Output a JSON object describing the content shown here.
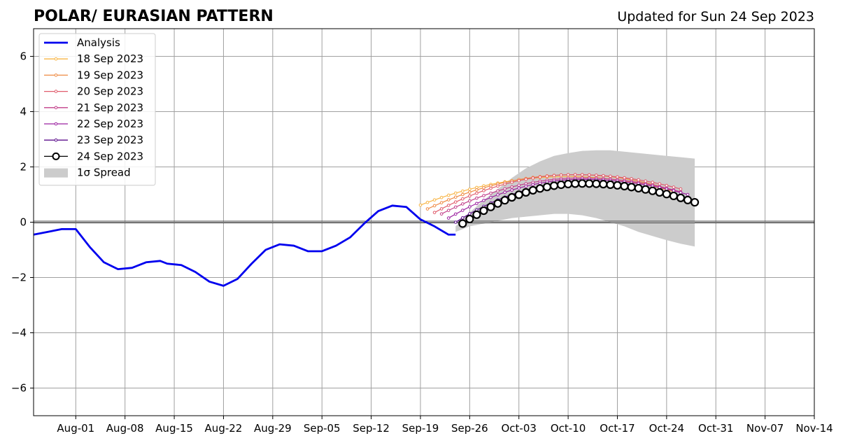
{
  "chart_data": {
    "type": "line",
    "title": "POLAR/ EURASIAN  PATTERN",
    "subtitle": "Updated for Sun 24 Sep 2023",
    "x_tick_labels": [
      "Aug-01",
      "Aug-08",
      "Aug-15",
      "Aug-22",
      "Aug-29",
      "Sep-05",
      "Sep-12",
      "Sep-19",
      "Sep-26",
      "Oct-03",
      "Oct-10",
      "Oct-17",
      "Oct-24",
      "Oct-31",
      "Nov-07",
      "Nov-14"
    ],
    "x_tick_values": [
      6,
      13,
      20,
      27,
      34,
      41,
      48,
      55,
      62,
      69,
      76,
      83,
      90,
      97,
      104,
      111
    ],
    "x_axis_origin": "Jul-26",
    "xlim": [
      0,
      111
    ],
    "ylim": [
      -7,
      7
    ],
    "y_ticks": [
      -6,
      -4,
      -2,
      0,
      2,
      4,
      6
    ],
    "y_tick_labels": [
      "−6",
      "−4",
      "−2",
      "0",
      "2",
      "4",
      "6"
    ],
    "grid": true,
    "zero_line": true,
    "legend_position": "upper-left",
    "analysis": {
      "name": "Analysis",
      "color": "#0000ee",
      "x": [
        0,
        2,
        4,
        6,
        8,
        10,
        12,
        14,
        16,
        18,
        19,
        21,
        23,
        25,
        27,
        29,
        31,
        33,
        35,
        37,
        39,
        41,
        43,
        45,
        47,
        49,
        51,
        53,
        55,
        57,
        59,
        60
      ],
      "y": [
        -0.45,
        -0.35,
        -0.25,
        -0.25,
        -0.9,
        -1.45,
        -1.7,
        -1.65,
        -1.45,
        -1.4,
        -1.5,
        -1.55,
        -1.8,
        -2.15,
        -2.3,
        -2.05,
        -1.5,
        -1.0,
        -0.8,
        -0.85,
        -1.05,
        -1.05,
        -0.85,
        -0.55,
        -0.05,
        0.4,
        0.6,
        0.55,
        0.1,
        -0.15,
        -0.45,
        -0.45
      ]
    },
    "forecasts": [
      {
        "name": "18 Sep 2023",
        "color": "#f8b545",
        "start": 55,
        "end": 91,
        "y0": 0.62,
        "ypeak": 1.65,
        "xpeak": 76,
        "yend": 1.1
      },
      {
        "name": "19 Sep 2023",
        "color": "#ef8a43",
        "start": 56,
        "end": 91,
        "y0": 0.48,
        "ypeak": 1.72,
        "xpeak": 77,
        "yend": 1.15
      },
      {
        "name": "20 Sep 2023",
        "color": "#e05c6c",
        "start": 57,
        "end": 92,
        "y0": 0.35,
        "ypeak": 1.72,
        "xpeak": 77,
        "yend": 1.2
      },
      {
        "name": "21 Sep 2023",
        "color": "#c23f8a",
        "start": 58,
        "end": 92,
        "y0": 0.3,
        "ypeak": 1.6,
        "xpeak": 78,
        "yend": 1.1
      },
      {
        "name": "22 Sep 2023",
        "color": "#9b21a0",
        "start": 59,
        "end": 93,
        "y0": 0.15,
        "ypeak": 1.55,
        "xpeak": 78,
        "yend": 1.0
      },
      {
        "name": "23 Sep 2023",
        "color": "#5c0e8c",
        "start": 60,
        "end": 94,
        "y0": 0.0,
        "ypeak": 1.45,
        "xpeak": 78,
        "yend": 0.8
      },
      {
        "name": "24 Sep 2023",
        "color": "#000000",
        "start": 61,
        "end": 94,
        "y0": -0.05,
        "ypeak": 1.4,
        "xpeak": 78,
        "yend": 0.72
      }
    ],
    "spread": {
      "name": "1σ Spread",
      "color": "#cccccc",
      "x": [
        60,
        62,
        64,
        66,
        68,
        70,
        72,
        74,
        76,
        78,
        80,
        82,
        84,
        86,
        88,
        90,
        92,
        94
      ],
      "upper": [
        -0.15,
        0.35,
        0.8,
        1.2,
        1.6,
        1.95,
        2.2,
        2.4,
        2.5,
        2.58,
        2.6,
        2.6,
        2.55,
        2.5,
        2.45,
        2.4,
        2.35,
        2.3
      ],
      "lower": [
        -0.35,
        -0.15,
        -0.05,
        0.05,
        0.15,
        0.2,
        0.25,
        0.3,
        0.3,
        0.25,
        0.15,
        0.0,
        -0.15,
        -0.35,
        -0.5,
        -0.65,
        -0.78,
        -0.88
      ]
    }
  }
}
